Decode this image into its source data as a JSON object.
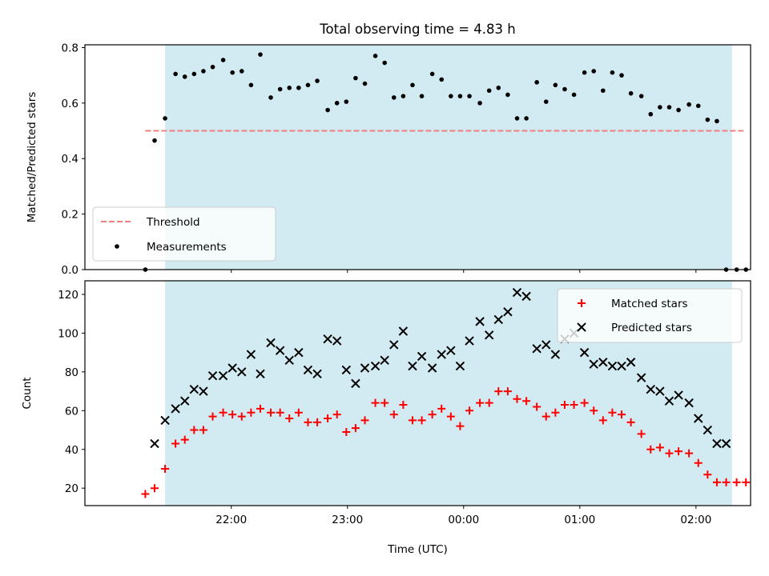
{
  "chart_data": [
    {
      "type": "scatter",
      "title": "Total observing time = 4.83 h",
      "xlabel": "",
      "ylabel": "Matched/Predicted stars",
      "ylim": [
        0,
        0.81
      ],
      "yticks": [
        0.0,
        0.2,
        0.4,
        0.6,
        0.8
      ],
      "ytick_labels": [
        "0.0",
        "0.2",
        "0.4",
        "0.6",
        "0.8"
      ],
      "x_unit": "hours since 21:00 UTC",
      "xlim": [
        -0.26,
        5.47
      ],
      "shaded_interval": [
        0.43,
        5.31
      ],
      "shade_color": "#add8e6",
      "legend_position": "lower left",
      "threshold": {
        "name": "Threshold",
        "value": 0.5,
        "x": [
          0.26,
          5.43
        ],
        "color": "#f08080"
      },
      "series": [
        {
          "name": "Measurements",
          "color": "#000000",
          "x": [
            0.26,
            0.34,
            0.43,
            0.52,
            0.6,
            0.68,
            0.76,
            0.84,
            0.93,
            1.01,
            1.09,
            1.17,
            1.25,
            1.34,
            1.42,
            1.5,
            1.58,
            1.66,
            1.74,
            1.83,
            1.91,
            1.99,
            2.07,
            2.15,
            2.24,
            2.32,
            2.4,
            2.48,
            2.56,
            2.64,
            2.73,
            2.81,
            2.89,
            2.97,
            3.05,
            3.14,
            3.22,
            3.3,
            3.38,
            3.46,
            3.54,
            3.63,
            3.71,
            3.79,
            3.87,
            3.95,
            4.04,
            4.12,
            4.2,
            4.28,
            4.36,
            4.44,
            4.53,
            4.61,
            4.69,
            4.77,
            4.85,
            4.94,
            5.02,
            5.1,
            5.18,
            5.26,
            5.35,
            5.43
          ],
          "y": [
            0.0,
            0.465,
            0.545,
            0.705,
            0.695,
            0.705,
            0.715,
            0.73,
            0.755,
            0.71,
            0.715,
            0.665,
            0.775,
            0.62,
            0.65,
            0.655,
            0.655,
            0.665,
            0.68,
            0.575,
            0.6,
            0.605,
            0.69,
            0.67,
            0.77,
            0.745,
            0.62,
            0.625,
            0.665,
            0.625,
            0.705,
            0.685,
            0.625,
            0.625,
            0.625,
            0.6,
            0.645,
            0.655,
            0.63,
            0.545,
            0.545,
            0.675,
            0.605,
            0.665,
            0.65,
            0.63,
            0.71,
            0.715,
            0.645,
            0.71,
            0.7,
            0.635,
            0.625,
            0.56,
            0.585,
            0.585,
            0.575,
            0.595,
            0.59,
            0.54,
            0.535,
            0.0,
            0.0,
            0.0
          ]
        }
      ]
    },
    {
      "type": "scatter",
      "title": "",
      "xlabel": "Time (UTC)",
      "ylabel": "Count",
      "ylim": [
        11,
        127
      ],
      "yticks": [
        20,
        40,
        60,
        80,
        100,
        120
      ],
      "ytick_labels": [
        "20",
        "40",
        "60",
        "80",
        "100",
        "120"
      ],
      "x_unit": "hours since 21:00 UTC",
      "xlim": [
        -0.26,
        5.47
      ],
      "xticks": [
        1,
        2,
        3,
        4,
        5,
        6
      ],
      "xtick_labels": [
        "22:00",
        "23:00",
        "00:00",
        "01:00",
        "02:00",
        ""
      ],
      "shaded_interval": [
        0.43,
        5.31
      ],
      "shade_color": "#add8e6",
      "legend_position": "upper right",
      "series": [
        {
          "name": "Matched stars",
          "marker": "+",
          "color": "#ff0000",
          "x": [
            0.26,
            0.34,
            0.43,
            0.52,
            0.6,
            0.68,
            0.76,
            0.84,
            0.93,
            1.01,
            1.09,
            1.17,
            1.25,
            1.34,
            1.42,
            1.5,
            1.58,
            1.66,
            1.74,
            1.83,
            1.91,
            1.99,
            2.07,
            2.15,
            2.24,
            2.32,
            2.4,
            2.48,
            2.56,
            2.64,
            2.73,
            2.81,
            2.89,
            2.97,
            3.05,
            3.14,
            3.22,
            3.3,
            3.38,
            3.46,
            3.54,
            3.63,
            3.71,
            3.79,
            3.87,
            3.95,
            4.04,
            4.12,
            4.2,
            4.28,
            4.36,
            4.44,
            4.53,
            4.61,
            4.69,
            4.77,
            4.85,
            4.94,
            5.02,
            5.1,
            5.18,
            5.26,
            5.35,
            5.43
          ],
          "y": [
            17,
            20,
            30,
            43,
            45,
            50,
            50,
            57,
            59,
            58,
            57,
            59,
            61,
            59,
            59,
            56,
            59,
            54,
            54,
            56,
            58,
            49,
            51,
            55,
            64,
            64,
            58,
            63,
            55,
            55,
            58,
            61,
            57,
            52,
            60,
            64,
            64,
            70,
            70,
            66,
            65,
            62,
            57,
            59,
            63,
            63,
            64,
            60,
            55,
            59,
            58,
            54,
            48,
            40,
            41,
            38,
            39,
            38,
            33,
            27,
            23,
            23,
            23,
            23
          ]
        },
        {
          "name": "Predicted stars",
          "marker": "x",
          "color": "#000000",
          "x": [
            0.34,
            0.43,
            0.52,
            0.6,
            0.68,
            0.76,
            0.84,
            0.93,
            1.01,
            1.09,
            1.17,
            1.25,
            1.34,
            1.42,
            1.5,
            1.58,
            1.66,
            1.74,
            1.83,
            1.91,
            1.99,
            2.07,
            2.15,
            2.24,
            2.32,
            2.4,
            2.48,
            2.56,
            2.64,
            2.73,
            2.81,
            2.89,
            2.97,
            3.05,
            3.14,
            3.22,
            3.3,
            3.38,
            3.46,
            3.54,
            3.63,
            3.71,
            3.79,
            3.87,
            3.95,
            4.04,
            4.12,
            4.2,
            4.28,
            4.36,
            4.44,
            4.53,
            4.61,
            4.69,
            4.77,
            4.85,
            4.94,
            5.02,
            5.1,
            5.18,
            5.26
          ],
          "y": [
            43,
            55,
            61,
            65,
            71,
            70,
            78,
            78,
            82,
            80,
            89,
            79,
            95,
            91,
            86,
            90,
            81,
            79,
            97,
            96,
            81,
            74,
            82,
            83,
            86,
            94,
            101,
            83,
            88,
            82,
            89,
            91,
            83,
            96,
            106,
            99,
            107,
            111,
            121,
            119,
            92,
            94,
            89,
            97,
            100,
            90,
            84,
            85,
            83,
            83,
            85,
            77,
            71,
            70,
            65,
            68,
            64,
            56,
            50,
            43,
            43
          ]
        }
      ]
    }
  ]
}
